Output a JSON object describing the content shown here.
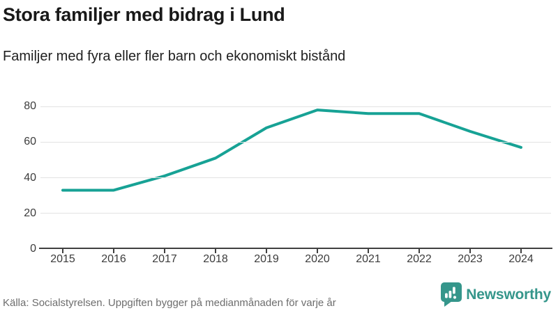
{
  "header": {
    "title": "Stora familjer med bidrag i Lund",
    "subtitle": "Familjer med fyra eller fler barn och ekonomiskt bistånd"
  },
  "footer": {
    "source": "Källa: Socialstyrelsen. Uppgiften bygger på medianmånaden för varje år",
    "brand": "Newsworthy"
  },
  "colors": {
    "line": "#17a295",
    "brand": "#35968b",
    "grid": "#e2e2e2",
    "axis": "#3f3f3f",
    "title_text": "#191919",
    "muted_text": "#6d6d6d"
  },
  "chart_data": {
    "type": "line",
    "title": "Stora familjer med bidrag i Lund",
    "subtitle": "Familjer med fyra eller fler barn och ekonomiskt bistånd",
    "x": [
      2015,
      2016,
      2017,
      2018,
      2019,
      2020,
      2021,
      2022,
      2023,
      2024
    ],
    "series": [
      {
        "name": "Familjer med fyra eller fler barn och ekonomiskt bistånd",
        "values": [
          33,
          33,
          41,
          51,
          68,
          78,
          76,
          76,
          66,
          57
        ]
      }
    ],
    "xlabel": "",
    "ylabel": "",
    "ylim": [
      0,
      80
    ],
    "yticks": [
      0,
      20,
      40,
      60,
      80
    ],
    "grid": "horizontal",
    "legend": "none",
    "line_color": "#17a295"
  }
}
